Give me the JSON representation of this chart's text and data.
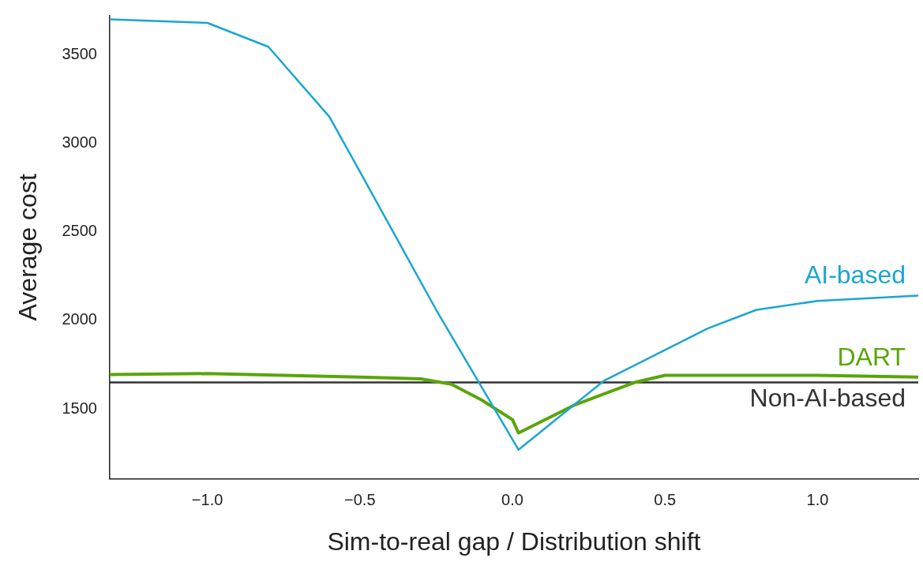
{
  "chart_data": {
    "type": "line",
    "xlabel": "Sim-to-real gap / Distribution shift",
    "ylabel": "Average cost",
    "xlim": [
      -1.32,
      1.33
    ],
    "ylim": [
      1106,
      3720
    ],
    "xticks": [
      {
        "value": -1,
        "label": "−1.0"
      },
      {
        "value": -0.5,
        "label": "−0.5"
      },
      {
        "value": 0,
        "label": "0.0"
      },
      {
        "value": 0.5,
        "label": "0.5"
      },
      {
        "value": 1,
        "label": "1.0"
      }
    ],
    "yticks": [
      1500,
      2000,
      2500,
      3000,
      3500
    ],
    "grid": false,
    "legend": false,
    "marker": "none",
    "line_style": "solid",
    "series": [
      {
        "name": "AI-based",
        "color": "#1ba6d0",
        "x": [
          -1.32,
          -1.0,
          -0.8,
          -0.6,
          -0.5,
          -0.25,
          0.02,
          0.3,
          0.64,
          0.8,
          1.0,
          1.33
        ],
        "values": [
          3700,
          3680,
          3545,
          3150,
          2840,
          2060,
          1270,
          1660,
          1955,
          2060,
          2110,
          2140
        ]
      },
      {
        "name": "DART",
        "color": "#5aa50a",
        "x": [
          -1.32,
          -1.0,
          -0.5,
          -0.3,
          -0.2,
          -0.1,
          0.0,
          0.02,
          0.2,
          0.4,
          0.5,
          1.0,
          1.33
        ],
        "values": [
          1695,
          1700,
          1680,
          1670,
          1640,
          1550,
          1440,
          1365,
          1520,
          1650,
          1690,
          1690,
          1680
        ]
      },
      {
        "name": "Non-AI-based",
        "color": "#333333",
        "x": [
          -1.32,
          1.33
        ],
        "values": [
          1650,
          1650
        ]
      }
    ]
  }
}
